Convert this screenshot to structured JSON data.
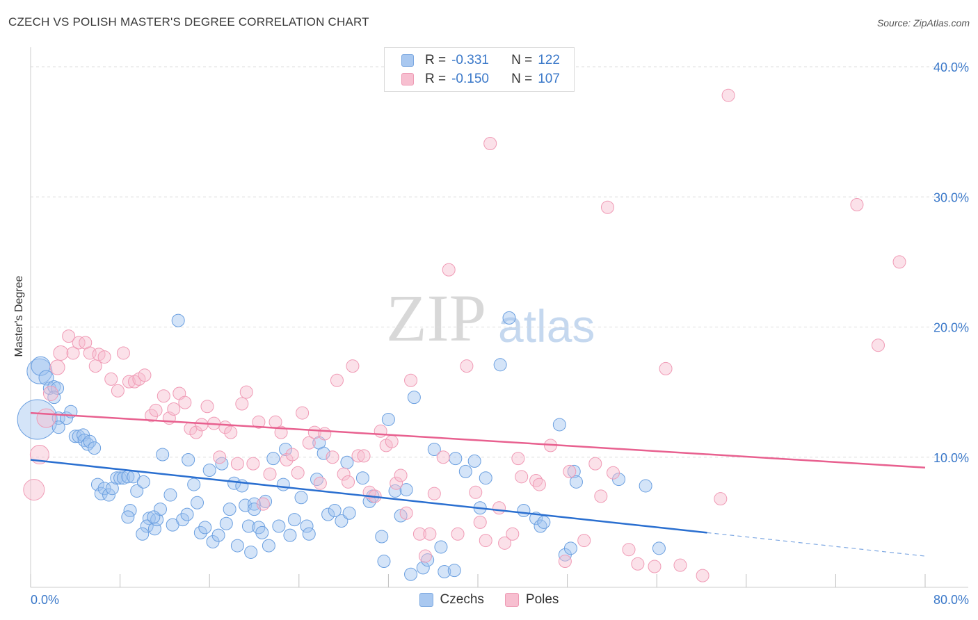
{
  "title": "CZECH VS POLISH MASTER'S DEGREE CORRELATION CHART",
  "source": "Source: ZipAtlas.com",
  "legend": {
    "rows": [
      {
        "r_label": "R =",
        "r_value": "-0.331",
        "n_label": "N =",
        "n_value": "122",
        "color": "#a9c8f0",
        "border": "#7aa7e0"
      },
      {
        "r_label": "R =",
        "r_value": "-0.150",
        "n_label": "N =",
        "n_value": "107",
        "color": "#f7bfd0",
        "border": "#ee9ab4"
      }
    ]
  },
  "bottom_legend": [
    "Czechs",
    "Poles"
  ],
  "watermark": {
    "zip": "ZIP",
    "atlas": "atlas"
  },
  "chart_data": {
    "type": "scatter",
    "title": "CZECH VS POLISH MASTER'S DEGREE CORRELATION CHART",
    "xlabel": "",
    "ylabel": "Master's Degree",
    "xlim": [
      0,
      80
    ],
    "ylim": [
      0,
      40
    ],
    "x_tick_labels": [
      "0.0%",
      "80.0%"
    ],
    "y_ticks": [
      10,
      20,
      30,
      40
    ],
    "y_tick_labels": [
      "10.0%",
      "20.0%",
      "30.0%",
      "40.0%"
    ],
    "grid": true,
    "legend_placement": "top-center",
    "series": [
      {
        "name": "Czechs",
        "color": "#6a9fe0",
        "line_color": "#2a6fd0",
        "trend": {
          "x": [
            0,
            60.5
          ],
          "y": [
            9.8,
            4.2
          ],
          "dashed_to": [
            80,
            2.4
          ]
        },
        "points": [
          [
            0.6,
            12.9,
            1.9
          ],
          [
            0.8,
            16.6,
            1.2
          ],
          [
            0.9,
            17.0,
            0.9
          ],
          [
            1.4,
            16.1,
            0.7
          ],
          [
            1.7,
            15.3,
            0.6
          ],
          [
            2.1,
            15.4,
            0.6
          ],
          [
            2.4,
            15.3,
            0.6
          ],
          [
            2.1,
            14.6,
            0.6
          ],
          [
            2.5,
            13.0,
            0.6
          ],
          [
            3.2,
            13.0,
            0.6
          ],
          [
            3.6,
            13.5,
            0.6
          ],
          [
            2.5,
            12.3,
            0.6
          ],
          [
            4.0,
            11.6,
            0.6
          ],
          [
            4.3,
            11.6,
            0.6
          ],
          [
            4.7,
            11.7,
            0.6
          ],
          [
            4.8,
            11.3,
            0.6
          ],
          [
            5.1,
            11.0,
            0.6
          ],
          [
            5.3,
            11.2,
            0.6
          ],
          [
            5.7,
            10.7,
            0.6
          ],
          [
            6.0,
            7.9,
            0.6
          ],
          [
            6.3,
            7.2,
            0.6
          ],
          [
            6.6,
            7.6,
            0.6
          ],
          [
            7.0,
            7.1,
            0.6
          ],
          [
            7.3,
            7.6,
            0.6
          ],
          [
            7.7,
            8.4,
            0.6
          ],
          [
            8.0,
            8.4,
            0.6
          ],
          [
            8.3,
            8.4,
            0.6
          ],
          [
            8.7,
            8.5,
            0.6
          ],
          [
            9.2,
            8.5,
            0.6
          ],
          [
            9.5,
            7.4,
            0.6
          ],
          [
            8.9,
            5.9,
            0.6
          ],
          [
            8.7,
            5.4,
            0.6
          ],
          [
            10.1,
            8.1,
            0.6
          ],
          [
            10.6,
            5.3,
            0.6
          ],
          [
            10.4,
            4.7,
            0.6
          ],
          [
            10.0,
            4.1,
            0.6
          ],
          [
            11.1,
            4.5,
            0.6
          ],
          [
            11.3,
            5.2,
            0.6
          ],
          [
            11.6,
            6.0,
            0.6
          ],
          [
            11.8,
            10.2,
            0.6
          ],
          [
            12.5,
            7.1,
            0.6
          ],
          [
            12.7,
            4.8,
            0.6
          ],
          [
            13.2,
            20.5,
            0.6
          ],
          [
            13.6,
            5.2,
            0.6
          ],
          [
            14.0,
            5.6,
            0.6
          ],
          [
            14.1,
            9.8,
            0.6
          ],
          [
            14.6,
            7.9,
            0.6
          ],
          [
            14.9,
            6.5,
            0.6
          ],
          [
            15.2,
            4.2,
            0.6
          ],
          [
            15.6,
            4.6,
            0.6
          ],
          [
            16.0,
            9.0,
            0.6
          ],
          [
            16.3,
            3.5,
            0.6
          ],
          [
            16.8,
            4.0,
            0.6
          ],
          [
            17.1,
            9.5,
            0.6
          ],
          [
            17.5,
            4.9,
            0.6
          ],
          [
            17.8,
            6.0,
            0.6
          ],
          [
            18.2,
            8.0,
            0.6
          ],
          [
            18.5,
            3.2,
            0.6
          ],
          [
            18.9,
            7.8,
            0.6
          ],
          [
            19.2,
            6.3,
            0.6
          ],
          [
            19.5,
            4.7,
            0.6
          ],
          [
            19.7,
            2.7,
            0.6
          ],
          [
            20.0,
            6.4,
            0.6
          ],
          [
            20.4,
            4.6,
            0.6
          ],
          [
            20.7,
            4.2,
            0.6
          ],
          [
            21.0,
            6.6,
            0.6
          ],
          [
            21.3,
            3.2,
            0.6
          ],
          [
            21.7,
            9.9,
            0.6
          ],
          [
            22.2,
            4.7,
            0.6
          ],
          [
            22.6,
            7.9,
            0.6
          ],
          [
            22.8,
            10.6,
            0.6
          ],
          [
            23.2,
            4.0,
            0.6
          ],
          [
            23.6,
            5.2,
            0.6
          ],
          [
            24.2,
            6.9,
            0.6
          ],
          [
            24.7,
            4.7,
            0.6
          ],
          [
            24.9,
            4.1,
            0.6
          ],
          [
            25.6,
            8.3,
            0.6
          ],
          [
            25.8,
            11.1,
            0.6
          ],
          [
            26.6,
            5.6,
            0.6
          ],
          [
            27.2,
            5.9,
            0.6
          ],
          [
            27.8,
            5.1,
            0.6
          ],
          [
            28.5,
            5.7,
            0.6
          ],
          [
            28.3,
            9.6,
            0.6
          ],
          [
            29.7,
            8.4,
            0.6
          ],
          [
            30.3,
            6.6,
            0.6
          ],
          [
            30.6,
            7.0,
            0.6
          ],
          [
            31.4,
            3.9,
            0.6
          ],
          [
            31.6,
            2.0,
            0.6
          ],
          [
            32.0,
            12.9,
            0.6
          ],
          [
            32.6,
            7.4,
            0.6
          ],
          [
            33.1,
            5.5,
            0.6
          ],
          [
            33.6,
            7.5,
            0.6
          ],
          [
            34.0,
            1.0,
            0.6
          ],
          [
            34.3,
            14.6,
            0.6
          ],
          [
            35.1,
            1.5,
            0.6
          ],
          [
            35.5,
            2.1,
            0.6
          ],
          [
            36.1,
            10.6,
            0.6
          ],
          [
            36.7,
            3.1,
            0.6
          ],
          [
            37.0,
            1.2,
            0.6
          ],
          [
            37.9,
            1.3,
            0.6
          ],
          [
            38.0,
            9.9,
            0.6
          ],
          [
            38.9,
            8.9,
            0.6
          ],
          [
            39.7,
            9.7,
            0.6
          ],
          [
            40.2,
            6.1,
            0.6
          ],
          [
            40.7,
            8.4,
            0.6
          ],
          [
            42.0,
            17.1,
            0.6
          ],
          [
            42.8,
            20.7,
            0.6
          ],
          [
            44.1,
            5.9,
            0.6
          ],
          [
            45.2,
            5.3,
            0.6
          ],
          [
            45.6,
            4.7,
            0.6
          ],
          [
            45.9,
            5.0,
            0.6
          ],
          [
            47.3,
            12.5,
            0.6
          ],
          [
            47.8,
            2.5,
            0.6
          ],
          [
            48.3,
            3.0,
            0.6
          ],
          [
            48.6,
            8.9,
            0.6
          ],
          [
            48.8,
            8.1,
            0.6
          ],
          [
            52.6,
            8.3,
            0.6
          ],
          [
            55.0,
            7.8,
            0.6
          ],
          [
            56.2,
            3.0,
            0.6
          ],
          [
            20.0,
            6.0,
            0.6
          ],
          [
            11.0,
            5.4,
            0.6
          ],
          [
            26.2,
            10.3,
            0.6
          ]
        ]
      },
      {
        "name": "Poles",
        "color": "#f09ab5",
        "line_color": "#e8608f",
        "trend": {
          "x": [
            0,
            80
          ],
          "y": [
            13.4,
            9.2
          ]
        },
        "points": [
          [
            0.3,
            7.5,
            1.0
          ],
          [
            0.8,
            10.2,
            0.9
          ],
          [
            1.4,
            13.0,
            0.9
          ],
          [
            1.8,
            14.9,
            0.7
          ],
          [
            2.4,
            16.9,
            0.7
          ],
          [
            2.7,
            18.0,
            0.7
          ],
          [
            3.4,
            19.3,
            0.6
          ],
          [
            3.8,
            18.0,
            0.6
          ],
          [
            4.3,
            18.8,
            0.6
          ],
          [
            4.9,
            18.8,
            0.6
          ],
          [
            5.3,
            18.0,
            0.6
          ],
          [
            5.8,
            17.0,
            0.6
          ],
          [
            6.1,
            17.9,
            0.6
          ],
          [
            6.6,
            17.7,
            0.6
          ],
          [
            7.2,
            16.0,
            0.6
          ],
          [
            7.8,
            15.1,
            0.6
          ],
          [
            8.3,
            18.0,
            0.6
          ],
          [
            8.8,
            15.8,
            0.6
          ],
          [
            9.3,
            15.8,
            0.6
          ],
          [
            9.7,
            16.0,
            0.6
          ],
          [
            10.2,
            16.3,
            0.6
          ],
          [
            10.8,
            13.2,
            0.6
          ],
          [
            11.2,
            13.6,
            0.6
          ],
          [
            11.9,
            14.7,
            0.6
          ],
          [
            12.4,
            13.0,
            0.6
          ],
          [
            12.8,
            13.7,
            0.6
          ],
          [
            13.3,
            14.9,
            0.6
          ],
          [
            13.8,
            14.2,
            0.6
          ],
          [
            14.3,
            12.2,
            0.6
          ],
          [
            14.8,
            11.9,
            0.6
          ],
          [
            15.3,
            12.5,
            0.6
          ],
          [
            15.8,
            13.9,
            0.6
          ],
          [
            16.4,
            12.6,
            0.6
          ],
          [
            16.9,
            10.0,
            0.6
          ],
          [
            17.4,
            12.3,
            0.6
          ],
          [
            17.9,
            11.9,
            0.6
          ],
          [
            18.5,
            9.5,
            0.6
          ],
          [
            18.9,
            14.1,
            0.6
          ],
          [
            19.3,
            15.0,
            0.6
          ],
          [
            19.9,
            9.5,
            0.6
          ],
          [
            20.4,
            12.7,
            0.6
          ],
          [
            20.8,
            6.4,
            0.6
          ],
          [
            21.4,
            8.7,
            0.6
          ],
          [
            21.9,
            12.7,
            0.6
          ],
          [
            22.4,
            11.9,
            0.6
          ],
          [
            22.9,
            9.8,
            0.6
          ],
          [
            23.4,
            10.2,
            0.6
          ],
          [
            23.9,
            8.8,
            0.6
          ],
          [
            24.3,
            13.4,
            0.6
          ],
          [
            24.9,
            11.1,
            0.6
          ],
          [
            25.4,
            11.9,
            0.6
          ],
          [
            25.9,
            8.0,
            0.6
          ],
          [
            26.3,
            11.8,
            0.6
          ],
          [
            27.0,
            10.0,
            0.6
          ],
          [
            27.4,
            15.9,
            0.6
          ],
          [
            28.0,
            8.7,
            0.6
          ],
          [
            28.4,
            8.1,
            0.6
          ],
          [
            28.8,
            17.0,
            0.6
          ],
          [
            29.3,
            10.1,
            0.6
          ],
          [
            29.8,
            10.1,
            0.6
          ],
          [
            30.3,
            7.3,
            0.6
          ],
          [
            30.8,
            7.0,
            0.6
          ],
          [
            31.3,
            12.0,
            0.6
          ],
          [
            31.8,
            10.9,
            0.6
          ],
          [
            32.3,
            11.2,
            0.6
          ],
          [
            32.7,
            8.0,
            0.6
          ],
          [
            33.1,
            8.6,
            0.6
          ],
          [
            33.6,
            5.7,
            0.6
          ],
          [
            34.0,
            15.9,
            0.6
          ],
          [
            34.8,
            4.1,
            0.6
          ],
          [
            35.3,
            2.4,
            0.6
          ],
          [
            35.7,
            4.1,
            0.6
          ],
          [
            36.1,
            7.2,
            0.6
          ],
          [
            36.9,
            10.0,
            0.6
          ],
          [
            37.4,
            24.4,
            0.6
          ],
          [
            38.2,
            4.1,
            0.6
          ],
          [
            39.0,
            17.0,
            0.6
          ],
          [
            39.8,
            7.3,
            0.6
          ],
          [
            40.2,
            5.0,
            0.6
          ],
          [
            40.7,
            3.6,
            0.6
          ],
          [
            41.1,
            34.1,
            0.6
          ],
          [
            41.9,
            6.1,
            0.6
          ],
          [
            42.4,
            3.4,
            0.6
          ],
          [
            43.1,
            4.1,
            0.6
          ],
          [
            43.6,
            9.9,
            0.6
          ],
          [
            43.9,
            8.5,
            0.6
          ],
          [
            45.2,
            8.2,
            0.6
          ],
          [
            45.5,
            7.9,
            0.6
          ],
          [
            46.5,
            10.9,
            0.6
          ],
          [
            47.8,
            2.0,
            0.6
          ],
          [
            48.2,
            8.9,
            0.6
          ],
          [
            49.5,
            3.6,
            0.6
          ],
          [
            50.5,
            9.5,
            0.6
          ],
          [
            51.0,
            7.0,
            0.6
          ],
          [
            51.6,
            29.2,
            0.6
          ],
          [
            52.1,
            8.8,
            0.6
          ],
          [
            53.5,
            2.9,
            0.6
          ],
          [
            54.3,
            1.8,
            0.6
          ],
          [
            55.8,
            1.6,
            0.6
          ],
          [
            56.8,
            16.8,
            0.6
          ],
          [
            58.1,
            1.7,
            0.6
          ],
          [
            60.1,
            0.9,
            0.6
          ],
          [
            61.7,
            6.8,
            0.6
          ],
          [
            62.4,
            37.8,
            0.6
          ],
          [
            73.9,
            29.4,
            0.6
          ],
          [
            77.7,
            25.0,
            0.6
          ],
          [
            75.8,
            18.6,
            0.6
          ]
        ]
      }
    ]
  }
}
